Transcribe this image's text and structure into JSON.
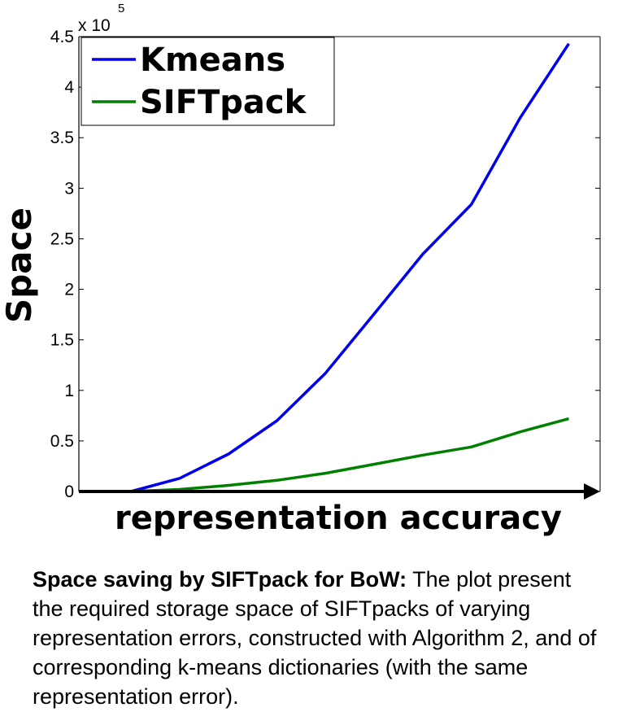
{
  "chart_data": {
    "type": "line",
    "xlabel": "representation accuracy",
    "ylabel": "Space",
    "y_multiplier": "x 10",
    "y_exponent": "5",
    "ylim": [
      0,
      4.5
    ],
    "xlim": [
      0,
      10
    ],
    "yticks": [
      "0",
      "0.5",
      "1",
      "1.5",
      "2",
      "2.5",
      "3",
      "3.5",
      "4",
      "4.5"
    ],
    "grid": false,
    "legend": "top-left",
    "x": [
      0,
      1,
      2,
      3,
      4,
      5,
      6,
      7,
      8,
      9,
      10
    ],
    "series": [
      {
        "name": "Kmeans",
        "color": "#0000ee",
        "values": [
          0,
          0.13,
          0.37,
          0.7,
          1.17,
          1.76,
          2.35,
          2.84,
          3.7,
          4.43
        ],
        "x": [
          1,
          1.93,
          2.87,
          3.8,
          4.73,
          5.67,
          6.6,
          7.53,
          8.47,
          9.4
        ]
      },
      {
        "name": "SIFTpack",
        "color": "#008000",
        "values": [
          0,
          0.02,
          0.06,
          0.11,
          0.18,
          0.27,
          0.36,
          0.44,
          0.59,
          0.72
        ],
        "x": [
          1,
          1.93,
          2.87,
          3.8,
          4.73,
          5.67,
          6.6,
          7.53,
          8.47,
          9.4
        ]
      }
    ]
  },
  "caption": {
    "title": "Space saving by SIFTpack for BoW:",
    "body": " The plot present the required storage space of SIFTpacks of varying representation errors, constructed with Algorithm 2, and of corresponding k-means dictionaries (with the same representation error)."
  },
  "colors": {
    "axis": "#000000",
    "kmeans": "#0000ee",
    "siftpack": "#008000"
  }
}
